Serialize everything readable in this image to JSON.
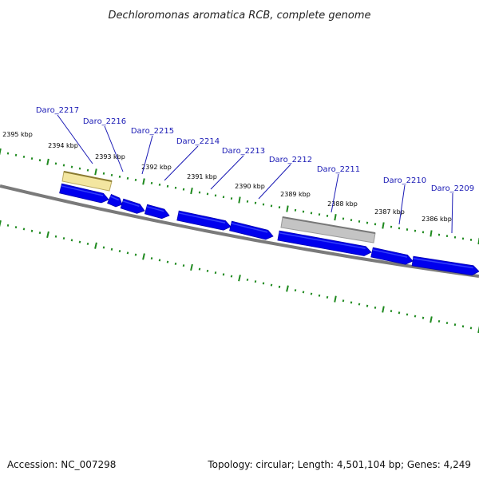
{
  "title": "Dechloromonas aromatica RCB, complete genome",
  "footer": {
    "accession": "Accession: NC_007298",
    "summary": "Topology: circular; Length: 4,501,104 bp; Genes: 4,249"
  },
  "ticks": [
    {
      "label": "2395 kbp"
    },
    {
      "label": "2394 kbp"
    },
    {
      "label": "2393 kbp"
    },
    {
      "label": "2392 kbp"
    },
    {
      "label": "2391 kbp"
    },
    {
      "label": "2390 kbp"
    },
    {
      "label": "2389 kbp"
    },
    {
      "label": "2388 kbp"
    },
    {
      "label": "2387 kbp"
    },
    {
      "label": "2386 kbp"
    }
  ],
  "genes": [
    {
      "name": "Daro_2217"
    },
    {
      "name": "Daro_2216"
    },
    {
      "name": "Daro_2215"
    },
    {
      "name": "Daro_2214"
    },
    {
      "name": "Daro_2213"
    },
    {
      "name": "Daro_2212"
    },
    {
      "name": "Daro_2211"
    },
    {
      "name": "Daro_2210"
    },
    {
      "name": "Daro_2209"
    }
  ],
  "colors": {
    "gene": "#0000ee",
    "gene_highlight": "#4a5cff",
    "backbone": "#7a7a7a",
    "ticks": "#1f8a1f",
    "feature_yellow": "#f3e6a0",
    "feature_gray": "#c4c4c4",
    "label": "#1a1ab5"
  }
}
